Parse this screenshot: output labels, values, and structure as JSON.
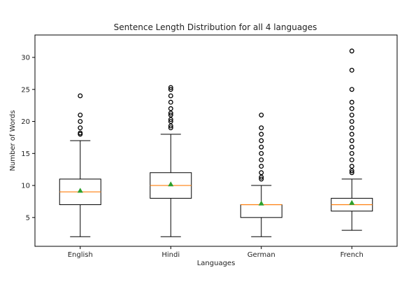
{
  "chart_data": {
    "type": "boxplot",
    "title": "Sentence Length Distribution for all 4 languages",
    "xlabel": "Languages",
    "ylabel": "Number of Words",
    "ylim": [
      0.5,
      33.5
    ],
    "yticks": [
      5,
      10,
      15,
      20,
      25,
      30
    ],
    "grid": false,
    "categories": [
      "English",
      "Hindi",
      "German",
      "French"
    ],
    "boxes": [
      {
        "name": "English",
        "whisker_low": 2,
        "q1": 7,
        "median": 9,
        "q3": 11,
        "whisker_high": 17,
        "mean": 9.2,
        "outliers": [
          18,
          18.2,
          19,
          20,
          21,
          24
        ]
      },
      {
        "name": "Hindi",
        "whisker_low": 2,
        "q1": 8,
        "median": 10,
        "q3": 12,
        "whisker_high": 18,
        "mean": 10.2,
        "outliers": [
          19,
          19.3,
          20,
          20.3,
          21,
          21.3,
          22,
          23,
          24,
          25,
          25.3
        ]
      },
      {
        "name": "German",
        "whisker_low": 2,
        "q1": 5,
        "median": 7,
        "q3": 7,
        "whisker_high": 10,
        "mean": 7.2,
        "outliers": [
          11,
          11.3,
          12,
          13,
          14,
          15,
          16,
          17,
          18,
          19,
          21
        ]
      },
      {
        "name": "French",
        "whisker_low": 3,
        "q1": 6,
        "median": 7,
        "q3": 8,
        "whisker_high": 11,
        "mean": 7.3,
        "outliers": [
          12,
          12.3,
          13,
          14,
          15,
          16,
          17,
          18,
          19,
          20,
          21,
          22,
          23,
          25,
          28,
          31
        ]
      }
    ],
    "colors": {
      "median": "#ff7f0e",
      "mean": "#2ca02c",
      "box": "#000000"
    }
  }
}
